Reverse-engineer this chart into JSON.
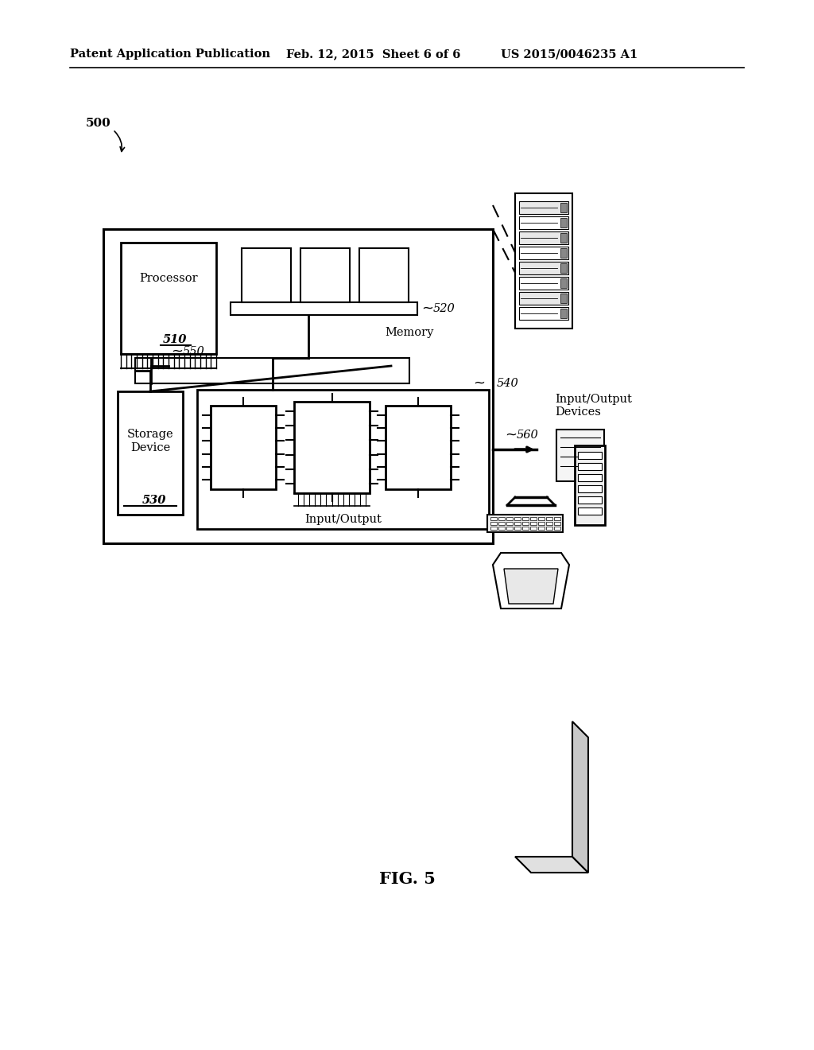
{
  "bg_color": "#ffffff",
  "header_left": "Patent Application Publication",
  "header_mid": "Feb. 12, 2015  Sheet 6 of 6",
  "header_right": "US 2015/0046235 A1",
  "fig_label": "FIG. 5",
  "fig_number": "500",
  "labels": {
    "processor": "Processor",
    "proc_num": "510",
    "memory": "Memory",
    "mem_num": "520",
    "storage": "Storage\nDevice",
    "stor_num": "530",
    "bus": "550",
    "io_box": "540",
    "io_label": "Input/Output",
    "io_devices": "Input/Output\nDevices",
    "io_num": "560"
  }
}
